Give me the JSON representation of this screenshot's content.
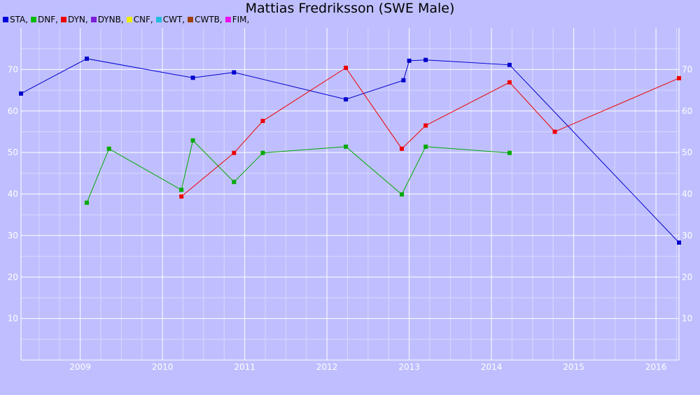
{
  "chart_data": {
    "type": "line",
    "title": "Mattias Fredriksson (SWE Male)",
    "xlabel": "",
    "ylabel": "",
    "xlim": [
      2008.28,
      2016.28
    ],
    "ylim": [
      0,
      80
    ],
    "x_ticks": [
      "2009",
      "2010",
      "2011",
      "2012",
      "2013",
      "2014",
      "2015",
      "2016"
    ],
    "y_ticks": [
      "10",
      "20",
      "30",
      "40",
      "50",
      "60",
      "70"
    ],
    "grid": true,
    "legend_position": "top-left",
    "legend": [
      {
        "label": "STA,",
        "color": "#0000dd"
      },
      {
        "label": "DNF,",
        "color": "#00bb00"
      },
      {
        "label": "DYN,",
        "color": "#ee0000"
      },
      {
        "label": "DYNB,",
        "color": "#7a1fd6"
      },
      {
        "label": "CNF,",
        "color": "#eeee00"
      },
      {
        "label": "CWT,",
        "color": "#22bbdd"
      },
      {
        "label": "CWTB,",
        "color": "#a0400a"
      },
      {
        "label": "FIM,",
        "color": "#ee11ee"
      }
    ],
    "series": [
      {
        "name": "STA",
        "color": "#0000cc",
        "points": [
          [
            2008.28,
            64.2
          ],
          [
            2009.08,
            72.6
          ],
          [
            2010.37,
            68.0
          ],
          [
            2010.87,
            69.3
          ],
          [
            2012.23,
            62.8
          ],
          [
            2012.93,
            67.4
          ],
          [
            2013.0,
            72.1
          ],
          [
            2013.2,
            72.3
          ],
          [
            2014.22,
            71.1
          ],
          [
            2016.28,
            28.3
          ]
        ]
      },
      {
        "name": "DNF",
        "color": "#00aa00",
        "points": [
          [
            2009.08,
            37.9
          ],
          [
            2009.35,
            50.9
          ],
          [
            2010.23,
            41.0
          ],
          [
            2010.37,
            52.9
          ],
          [
            2010.87,
            42.9
          ],
          [
            2011.22,
            49.9
          ],
          [
            2012.23,
            51.4
          ],
          [
            2012.91,
            39.9
          ],
          [
            2013.2,
            51.4
          ],
          [
            2014.22,
            49.9
          ]
        ]
      },
      {
        "name": "DYN",
        "color": "#ee0000",
        "points": [
          [
            2010.23,
            39.4
          ],
          [
            2010.87,
            49.9
          ],
          [
            2011.22,
            57.6
          ],
          [
            2012.23,
            70.4
          ],
          [
            2012.91,
            50.9
          ],
          [
            2013.2,
            56.5
          ],
          [
            2014.22,
            66.9
          ],
          [
            2014.77,
            55.0
          ],
          [
            2016.28,
            67.9
          ]
        ]
      }
    ]
  }
}
